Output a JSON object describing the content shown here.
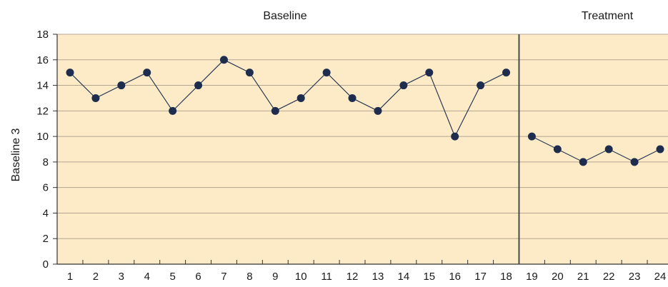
{
  "chart_data": {
    "type": "line",
    "title": "",
    "xlabel": "",
    "ylabel": "Baseline 3",
    "x": [
      1,
      2,
      3,
      4,
      5,
      6,
      7,
      8,
      9,
      10,
      11,
      12,
      13,
      14,
      15,
      16,
      17,
      18,
      19,
      20,
      21,
      22,
      23,
      24
    ],
    "xlim": [
      0.5,
      24.5
    ],
    "ylim": [
      0,
      18
    ],
    "yticks": [
      0,
      2,
      4,
      6,
      8,
      10,
      12,
      14,
      16,
      18
    ],
    "grid": true,
    "phases": [
      {
        "label": "Baseline",
        "x": [
          1,
          2,
          3,
          4,
          5,
          6,
          7,
          8,
          9,
          10,
          11,
          12,
          13,
          14,
          15,
          16,
          17,
          18
        ],
        "values": [
          15,
          13,
          14,
          15,
          12,
          14,
          16,
          15,
          12,
          13,
          15,
          13,
          12,
          14,
          15,
          10,
          14,
          15
        ]
      },
      {
        "label": "Treatment",
        "x": [
          19,
          20,
          21,
          22,
          23,
          24
        ],
        "values": [
          10,
          9,
          8,
          9,
          8,
          9
        ]
      }
    ],
    "phase_change_after": 18,
    "colors": {
      "background": "#fdebc8",
      "gridline": "#b3a58e",
      "line": "#2b3a55",
      "marker": "#1e2d4d",
      "divider": "#4a4a4a"
    }
  }
}
